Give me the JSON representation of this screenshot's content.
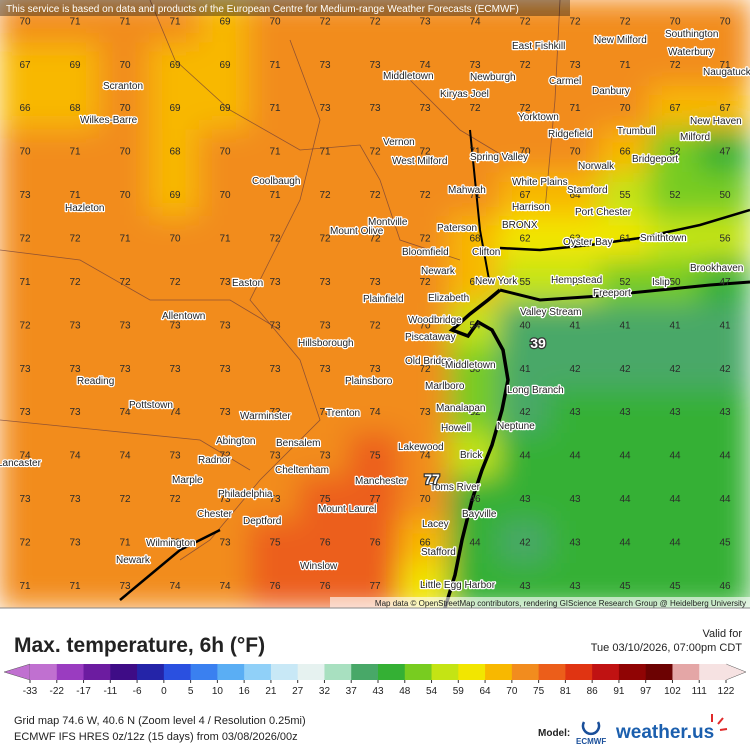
{
  "header": {
    "notice": "This service is based on data and products of the European Centre for Medium-range Weather Forecasts (ECMWF)"
  },
  "map": {
    "type": "grid",
    "values": [
      [
        70,
        71,
        71,
        71,
        69,
        70,
        72,
        72,
        73,
        74,
        72,
        72,
        72,
        70,
        70
      ],
      [
        67,
        69,
        70,
        69,
        69,
        71,
        73,
        73,
        74,
        73,
        72,
        73,
        71,
        72,
        71
      ],
      [
        66,
        68,
        70,
        69,
        69,
        71,
        73,
        73,
        73,
        72,
        72,
        71,
        70,
        67,
        67
      ],
      [
        70,
        71,
        70,
        68,
        70,
        71,
        71,
        72,
        72,
        71,
        70,
        70,
        66,
        52,
        47
      ],
      [
        73,
        71,
        70,
        69,
        70,
        71,
        72,
        72,
        72,
        71,
        67,
        64,
        55,
        52,
        50
      ],
      [
        72,
        72,
        71,
        70,
        71,
        72,
        72,
        72,
        72,
        68,
        62,
        63,
        61,
        58,
        56
      ],
      [
        71,
        72,
        72,
        72,
        73,
        73,
        73,
        73,
        72,
        65,
        55,
        57,
        52,
        50,
        47
      ],
      [
        72,
        73,
        73,
        73,
        73,
        73,
        73,
        72,
        70,
        54,
        40,
        41,
        41,
        41,
        41
      ],
      [
        73,
        73,
        73,
        73,
        73,
        73,
        73,
        73,
        72,
        50,
        41,
        42,
        42,
        42,
        42
      ],
      [
        73,
        73,
        74,
        74,
        73,
        73,
        73,
        74,
        73,
        52,
        42,
        43,
        43,
        43,
        43
      ],
      [
        74,
        74,
        74,
        73,
        72,
        73,
        73,
        75,
        74,
        55,
        44,
        44,
        44,
        44,
        44
      ],
      [
        73,
        73,
        72,
        72,
        73,
        73,
        75,
        77,
        70,
        46,
        43,
        43,
        44,
        44,
        44
      ],
      [
        72,
        73,
        71,
        72,
        73,
        75,
        76,
        76,
        66,
        44,
        42,
        43,
        44,
        44,
        45
      ],
      [
        71,
        71,
        73,
        74,
        74,
        76,
        76,
        77,
        60,
        44,
        43,
        43,
        45,
        45,
        46
      ]
    ],
    "markers": [
      39,
      77
    ],
    "cities": [
      "Southington",
      "Waterbury",
      "New Milford",
      "East Fishkill",
      "Middletown",
      "Newburgh",
      "Carmel",
      "Danbury",
      "Naugatuck",
      "Scranton",
      "Kiryas Joel",
      "Wilkes-Barre",
      "Yorktown",
      "Ridgefield",
      "Trumbull",
      "New Haven",
      "Milford",
      "Vernon",
      "West Milford",
      "Spring Valley",
      "Norwalk",
      "Bridgeport",
      "Coolbaugh",
      "White Plains",
      "Mahwah",
      "Stamford",
      "Hazleton",
      "Harrison",
      "Port Chester",
      "Montville",
      "Paterson",
      "BRONX",
      "Mount Olive",
      "Oyster Bay",
      "Smithtown",
      "Bloomfield",
      "Clifton",
      "Newark",
      "Brookhaven",
      "New York",
      "Hempstead",
      "Islip",
      "Easton",
      "Elizabeth",
      "Plainfield",
      "Freeport",
      "Valley Stream",
      "Allentown",
      "Woodbridge",
      "Piscataway",
      "Hillsborough",
      "Old Bridge",
      "Middletown",
      "Plainsboro",
      "Reading",
      "Marlboro",
      "Long Branch",
      "Pottstown",
      "Warminster",
      "Trenton",
      "Manalapan",
      "Neptune",
      "Howell",
      "Abington",
      "Bensalem",
      "Lakewood",
      "Radnor",
      "Brick",
      "Cheltenham",
      "Lancaster",
      "Manchester",
      "Toms River",
      "Marple",
      "Philadelphia",
      "Mount Laurel",
      "Bayville",
      "Chester",
      "Deptford",
      "Lacey",
      "Wilmington",
      "Stafford",
      "Newark",
      "Winslow",
      "Little Egg Harbor"
    ],
    "attribution": "Map data © OpenStreetMap contributors, rendering GIScience Research Group @ Heidelberg University"
  },
  "legend": {
    "title": "Max. temperature, 6h (°F)",
    "ticks": [
      -33,
      -22,
      -17,
      -11,
      -6,
      0,
      5,
      10,
      16,
      21,
      27,
      32,
      37,
      43,
      48,
      54,
      59,
      64,
      70,
      75,
      81,
      86,
      91,
      97,
      102,
      111,
      122
    ],
    "colors": [
      "#c070d0",
      "#9a3cc0",
      "#6c1ca0",
      "#3e0c86",
      "#2424a8",
      "#2a50e0",
      "#3a80f0",
      "#5aaef4",
      "#90d0f8",
      "#c8e8f6",
      "#e6f2f0",
      "#a8e0c0",
      "#48a868",
      "#34b034",
      "#78cc20",
      "#c4e414",
      "#f2e600",
      "#f8b800",
      "#f28c1e",
      "#ec5e1a",
      "#e03412",
      "#c01212",
      "#900404",
      "#6c0202",
      "#e4a6a6",
      "#f6e2e2"
    ]
  },
  "valid": {
    "label": "Valid for",
    "time": "Tue 03/10/2026, 07:00pm CDT"
  },
  "footer": {
    "grid": "Grid map 74.6 W, 40.6 N (Zoom level 4 / Resolution 0.25mi)",
    "run": "ECMWF IFS HRES 0z/12z (15 days) from 03/08/2026/00z",
    "model_label": "Model:",
    "model": "ECMWF",
    "brand": "weather.us"
  }
}
